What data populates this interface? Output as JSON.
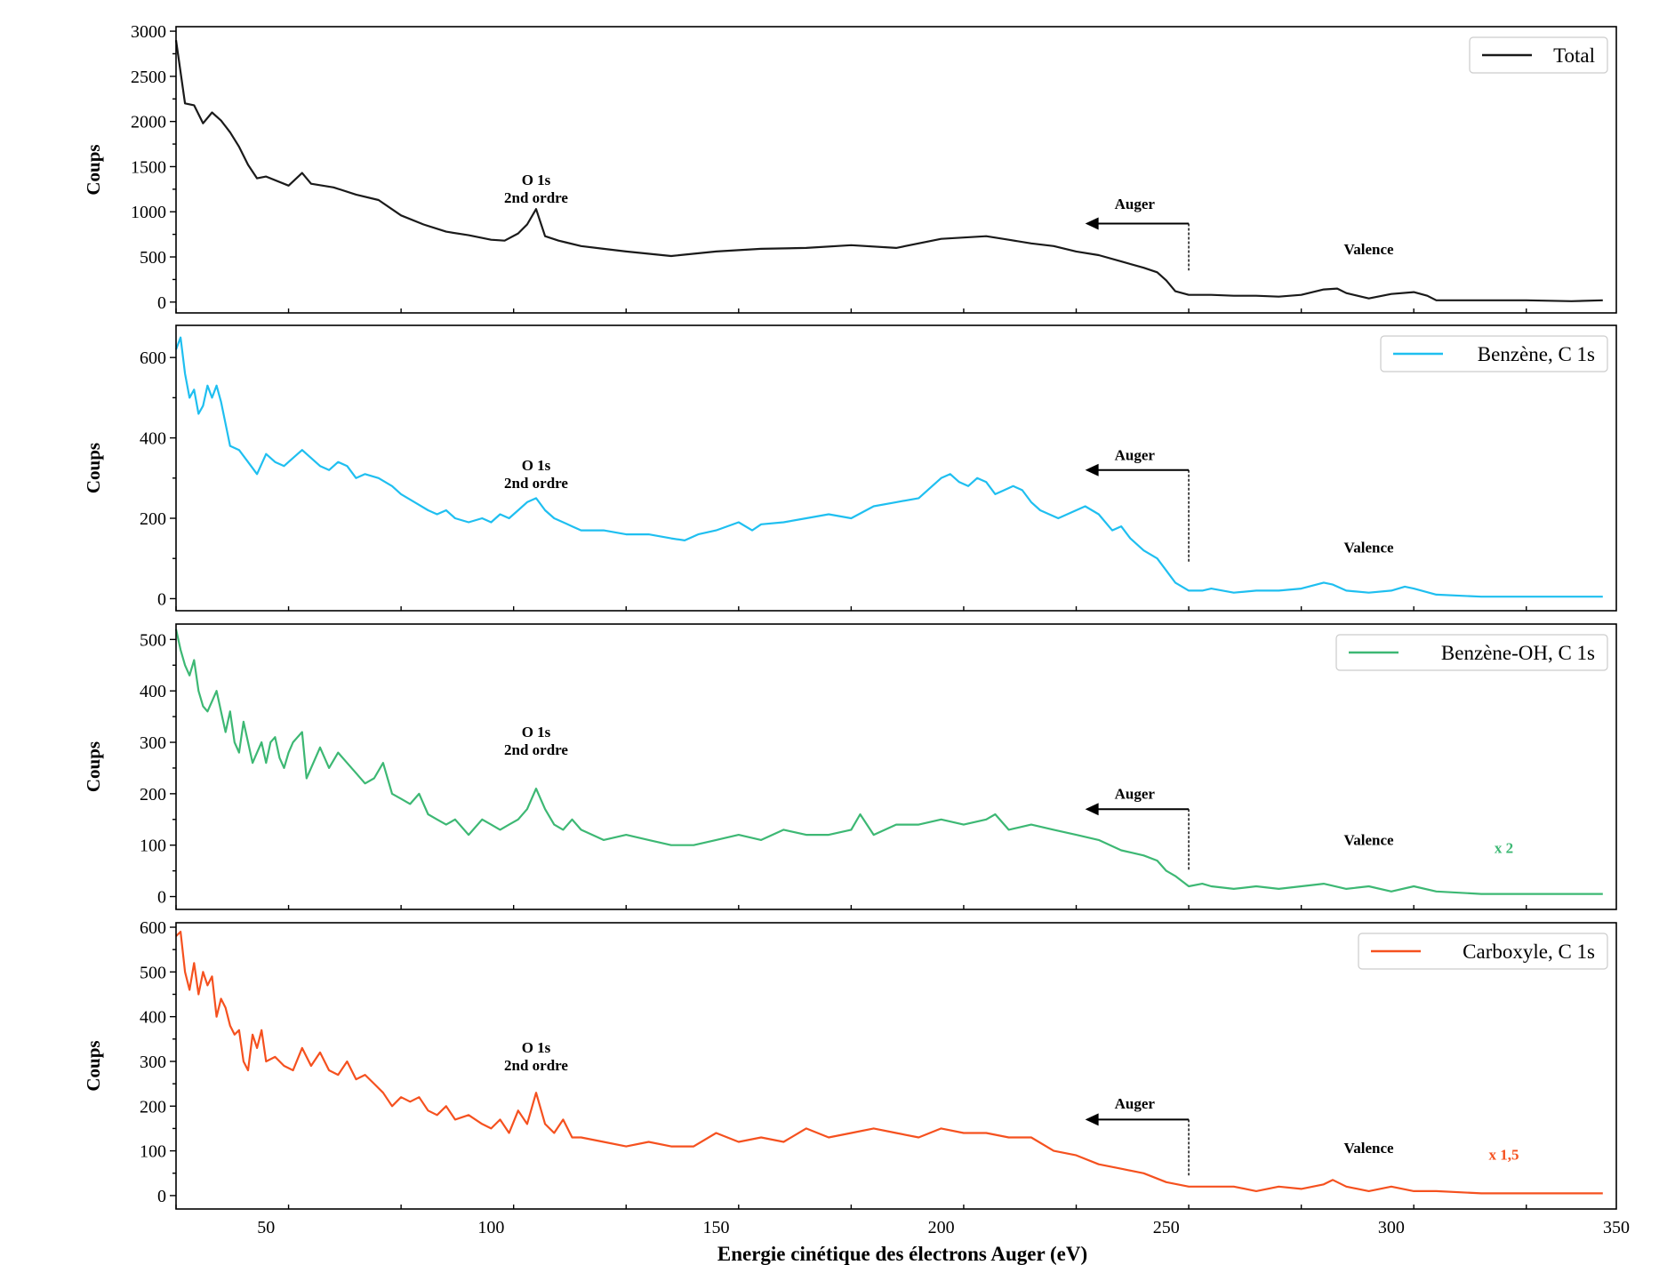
{
  "xlabel": "Energie cinétique des électrons Auger (eV)",
  "xlim": [
    30,
    350
  ],
  "xticks": [
    50,
    100,
    150,
    200,
    250,
    300,
    350
  ],
  "xtick_labels": [
    "50",
    "100",
    "150",
    "200",
    "250",
    "300",
    "350"
  ],
  "annotation_text": {
    "o1s_line1": "O 1s",
    "o1s_line2": "2nd ordre",
    "auger": "Auger",
    "valence": "Valence"
  },
  "chart_data": [
    {
      "type": "line",
      "ylabel": "Coups",
      "ylim": [
        -120,
        3050
      ],
      "yticks": [
        0,
        500,
        1000,
        1500,
        2000,
        2500,
        3000
      ],
      "ytick_labels": [
        "0",
        "500",
        "1000",
        "1500",
        "2000",
        "2500",
        "3000"
      ],
      "series": [
        {
          "name": "Total",
          "color": "#1a1a1a",
          "x": [
            30,
            32,
            34,
            36,
            38,
            40,
            42,
            44,
            46,
            48,
            50,
            55,
            58,
            60,
            65,
            70,
            75,
            80,
            85,
            90,
            95,
            100,
            103,
            106,
            108,
            110,
            112,
            115,
            120,
            125,
            130,
            140,
            150,
            160,
            170,
            180,
            190,
            200,
            210,
            215,
            220,
            225,
            230,
            235,
            240,
            245,
            248,
            250,
            252,
            255,
            260,
            265,
            270,
            275,
            280,
            285,
            288,
            290,
            295,
            300,
            305,
            308,
            310,
            320,
            330,
            340,
            347
          ],
          "y": [
            2900,
            2200,
            2180,
            1980,
            2100,
            2010,
            1880,
            1720,
            1520,
            1370,
            1390,
            1290,
            1430,
            1310,
            1270,
            1190,
            1130,
            960,
            860,
            780,
            740,
            690,
            680,
            760,
            860,
            1030,
            730,
            680,
            620,
            590,
            560,
            510,
            560,
            590,
            600,
            630,
            600,
            700,
            730,
            690,
            650,
            620,
            560,
            520,
            450,
            380,
            330,
            240,
            120,
            80,
            80,
            70,
            70,
            60,
            80,
            140,
            150,
            100,
            40,
            90,
            110,
            70,
            20,
            20,
            20,
            10,
            20
          ]
        }
      ],
      "annotations": {
        "o1s": {
          "x": 110,
          "y": 1300
        },
        "auger_arrow": {
          "x_from": 255,
          "x_to": 232,
          "y": 870,
          "y_drop_to": 350
        },
        "auger_label": {
          "x": 243,
          "y": 1030
        },
        "valence": {
          "x": 295,
          "y": 530
        }
      }
    },
    {
      "type": "line",
      "ylabel": "Coups",
      "ylim": [
        -30,
        680
      ],
      "yticks": [
        0,
        200,
        400,
        600
      ],
      "ytick_labels": [
        "0",
        "200",
        "400",
        "600"
      ],
      "series": [
        {
          "name": "Benzène, C 1s",
          "color": "#1fbff0",
          "x": [
            30,
            31,
            32,
            33,
            34,
            35,
            36,
            37,
            38,
            39,
            40,
            42,
            44,
            46,
            48,
            50,
            52,
            54,
            56,
            58,
            60,
            62,
            64,
            66,
            68,
            70,
            72,
            75,
            78,
            80,
            83,
            86,
            88,
            90,
            92,
            95,
            98,
            100,
            102,
            104,
            106,
            108,
            110,
            112,
            114,
            116,
            118,
            120,
            125,
            130,
            135,
            140,
            143,
            146,
            150,
            155,
            158,
            160,
            165,
            170,
            175,
            180,
            185,
            190,
            195,
            198,
            200,
            202,
            204,
            206,
            208,
            210,
            212,
            214,
            216,
            218,
            220,
            222,
            224,
            226,
            230,
            232,
            235,
            238,
            240,
            242,
            245,
            248,
            250,
            252,
            255,
            258,
            260,
            265,
            270,
            275,
            280,
            285,
            287,
            290,
            295,
            300,
            303,
            305,
            310,
            320,
            330,
            340,
            347
          ],
          "y": [
            620,
            650,
            560,
            500,
            520,
            460,
            480,
            530,
            500,
            530,
            490,
            380,
            370,
            340,
            310,
            360,
            340,
            330,
            350,
            370,
            350,
            330,
            320,
            340,
            330,
            300,
            310,
            300,
            280,
            260,
            240,
            220,
            210,
            220,
            200,
            190,
            200,
            190,
            210,
            200,
            220,
            240,
            250,
            220,
            200,
            190,
            180,
            170,
            170,
            160,
            160,
            150,
            145,
            160,
            170,
            190,
            170,
            185,
            190,
            200,
            210,
            200,
            230,
            240,
            250,
            280,
            300,
            310,
            290,
            280,
            300,
            290,
            260,
            270,
            280,
            270,
            240,
            220,
            210,
            200,
            220,
            230,
            210,
            170,
            180,
            150,
            120,
            100,
            70,
            40,
            20,
            20,
            25,
            15,
            20,
            20,
            25,
            40,
            35,
            20,
            15,
            20,
            30,
            25,
            10,
            5,
            5,
            5,
            5
          ]
        }
      ],
      "annotations": {
        "o1s": {
          "x": 110,
          "y": 320
        },
        "auger_arrow": {
          "x_from": 255,
          "x_to": 232,
          "y": 320,
          "y_drop_to": 90
        },
        "auger_label": {
          "x": 243,
          "y": 345
        },
        "valence": {
          "x": 295,
          "y": 115
        }
      }
    },
    {
      "type": "line",
      "ylabel": "Coups",
      "ylim": [
        -25,
        530
      ],
      "yticks": [
        0,
        100,
        200,
        300,
        400,
        500
      ],
      "ytick_labels": [
        "0",
        "100",
        "200",
        "300",
        "400",
        "500"
      ],
      "factor_label": "x 2",
      "series": [
        {
          "name": "Benzène-OH, C 1s",
          "color": "#3db874",
          "x": [
            30,
            31,
            32,
            33,
            34,
            35,
            36,
            37,
            38,
            39,
            40,
            41,
            42,
            43,
            44,
            45,
            46,
            47,
            48,
            49,
            50,
            51,
            52,
            53,
            54,
            55,
            56,
            57,
            58,
            59,
            60,
            62,
            64,
            66,
            68,
            70,
            72,
            74,
            76,
            78,
            80,
            82,
            84,
            86,
            88,
            90,
            92,
            95,
            98,
            100,
            102,
            104,
            106,
            108,
            110,
            112,
            114,
            116,
            118,
            120,
            125,
            130,
            135,
            140,
            145,
            150,
            155,
            160,
            165,
            170,
            175,
            180,
            182,
            185,
            190,
            195,
            200,
            205,
            210,
            212,
            215,
            220,
            225,
            230,
            235,
            240,
            245,
            248,
            250,
            252,
            255,
            258,
            260,
            265,
            270,
            275,
            280,
            285,
            290,
            295,
            300,
            305,
            310,
            320,
            330,
            340,
            347
          ],
          "y": [
            520,
            480,
            450,
            430,
            460,
            400,
            370,
            360,
            380,
            400,
            360,
            320,
            360,
            300,
            280,
            340,
            300,
            260,
            280,
            300,
            260,
            300,
            310,
            270,
            250,
            280,
            300,
            310,
            320,
            230,
            250,
            290,
            250,
            280,
            260,
            240,
            220,
            230,
            260,
            200,
            190,
            180,
            200,
            160,
            150,
            140,
            150,
            120,
            150,
            140,
            130,
            140,
            150,
            170,
            210,
            170,
            140,
            130,
            150,
            130,
            110,
            120,
            110,
            100,
            100,
            110,
            120,
            110,
            130,
            120,
            120,
            130,
            160,
            120,
            140,
            140,
            150,
            140,
            150,
            160,
            130,
            140,
            130,
            120,
            110,
            90,
            80,
            70,
            50,
            40,
            20,
            25,
            20,
            15,
            20,
            15,
            20,
            25,
            15,
            20,
            10,
            20,
            10,
            5,
            5,
            5,
            5
          ]
        }
      ],
      "annotations": {
        "o1s": {
          "x": 110,
          "y": 310
        },
        "auger_arrow": {
          "x_from": 255,
          "x_to": 232,
          "y": 170,
          "y_drop_to": 50
        },
        "auger_label": {
          "x": 243,
          "y": 190
        },
        "valence": {
          "x": 295,
          "y": 100
        },
        "factor": {
          "x": 325,
          "y": 85
        }
      }
    },
    {
      "type": "line",
      "ylabel": "Coups",
      "ylim": [
        -30,
        610
      ],
      "yticks": [
        0,
        100,
        200,
        300,
        400,
        500,
        600
      ],
      "ytick_labels": [
        "0",
        "100",
        "200",
        "300",
        "400",
        "500",
        "600"
      ],
      "factor_label": "x 1,5",
      "series": [
        {
          "name": "Carboxyle, C 1s",
          "color": "#f5511f",
          "x": [
            30,
            31,
            32,
            33,
            34,
            35,
            36,
            37,
            38,
            39,
            40,
            41,
            42,
            43,
            44,
            45,
            46,
            47,
            48,
            49,
            50,
            52,
            54,
            56,
            58,
            60,
            62,
            64,
            66,
            68,
            70,
            72,
            74,
            76,
            78,
            80,
            82,
            84,
            86,
            88,
            90,
            92,
            95,
            98,
            100,
            102,
            104,
            106,
            108,
            110,
            112,
            114,
            116,
            118,
            120,
            125,
            130,
            135,
            140,
            145,
            150,
            155,
            160,
            165,
            170,
            175,
            180,
            185,
            190,
            195,
            200,
            205,
            210,
            215,
            220,
            225,
            230,
            235,
            240,
            245,
            250,
            255,
            260,
            265,
            270,
            275,
            280,
            285,
            287,
            290,
            295,
            300,
            305,
            310,
            320,
            330,
            340,
            347
          ],
          "y": [
            580,
            590,
            500,
            460,
            520,
            450,
            500,
            470,
            490,
            400,
            440,
            420,
            380,
            360,
            370,
            300,
            280,
            360,
            330,
            370,
            300,
            310,
            290,
            280,
            330,
            290,
            320,
            280,
            270,
            300,
            260,
            270,
            250,
            230,
            200,
            220,
            210,
            220,
            190,
            180,
            200,
            170,
            180,
            160,
            150,
            170,
            140,
            190,
            160,
            230,
            160,
            140,
            170,
            130,
            130,
            120,
            110,
            120,
            110,
            110,
            140,
            120,
            130,
            120,
            150,
            130,
            140,
            150,
            140,
            130,
            150,
            140,
            140,
            130,
            130,
            100,
            90,
            70,
            60,
            50,
            30,
            20,
            20,
            20,
            10,
            20,
            15,
            25,
            35,
            20,
            10,
            20,
            10,
            10,
            5,
            5,
            5,
            5
          ]
        }
      ],
      "annotations": {
        "o1s": {
          "x": 110,
          "y": 320
        },
        "auger_arrow": {
          "x_from": 255,
          "x_to": 232,
          "y": 170,
          "y_drop_to": 45
        },
        "auger_label": {
          "x": 243,
          "y": 195
        },
        "valence": {
          "x": 295,
          "y": 95
        },
        "factor": {
          "x": 325,
          "y": 80
        }
      }
    }
  ]
}
